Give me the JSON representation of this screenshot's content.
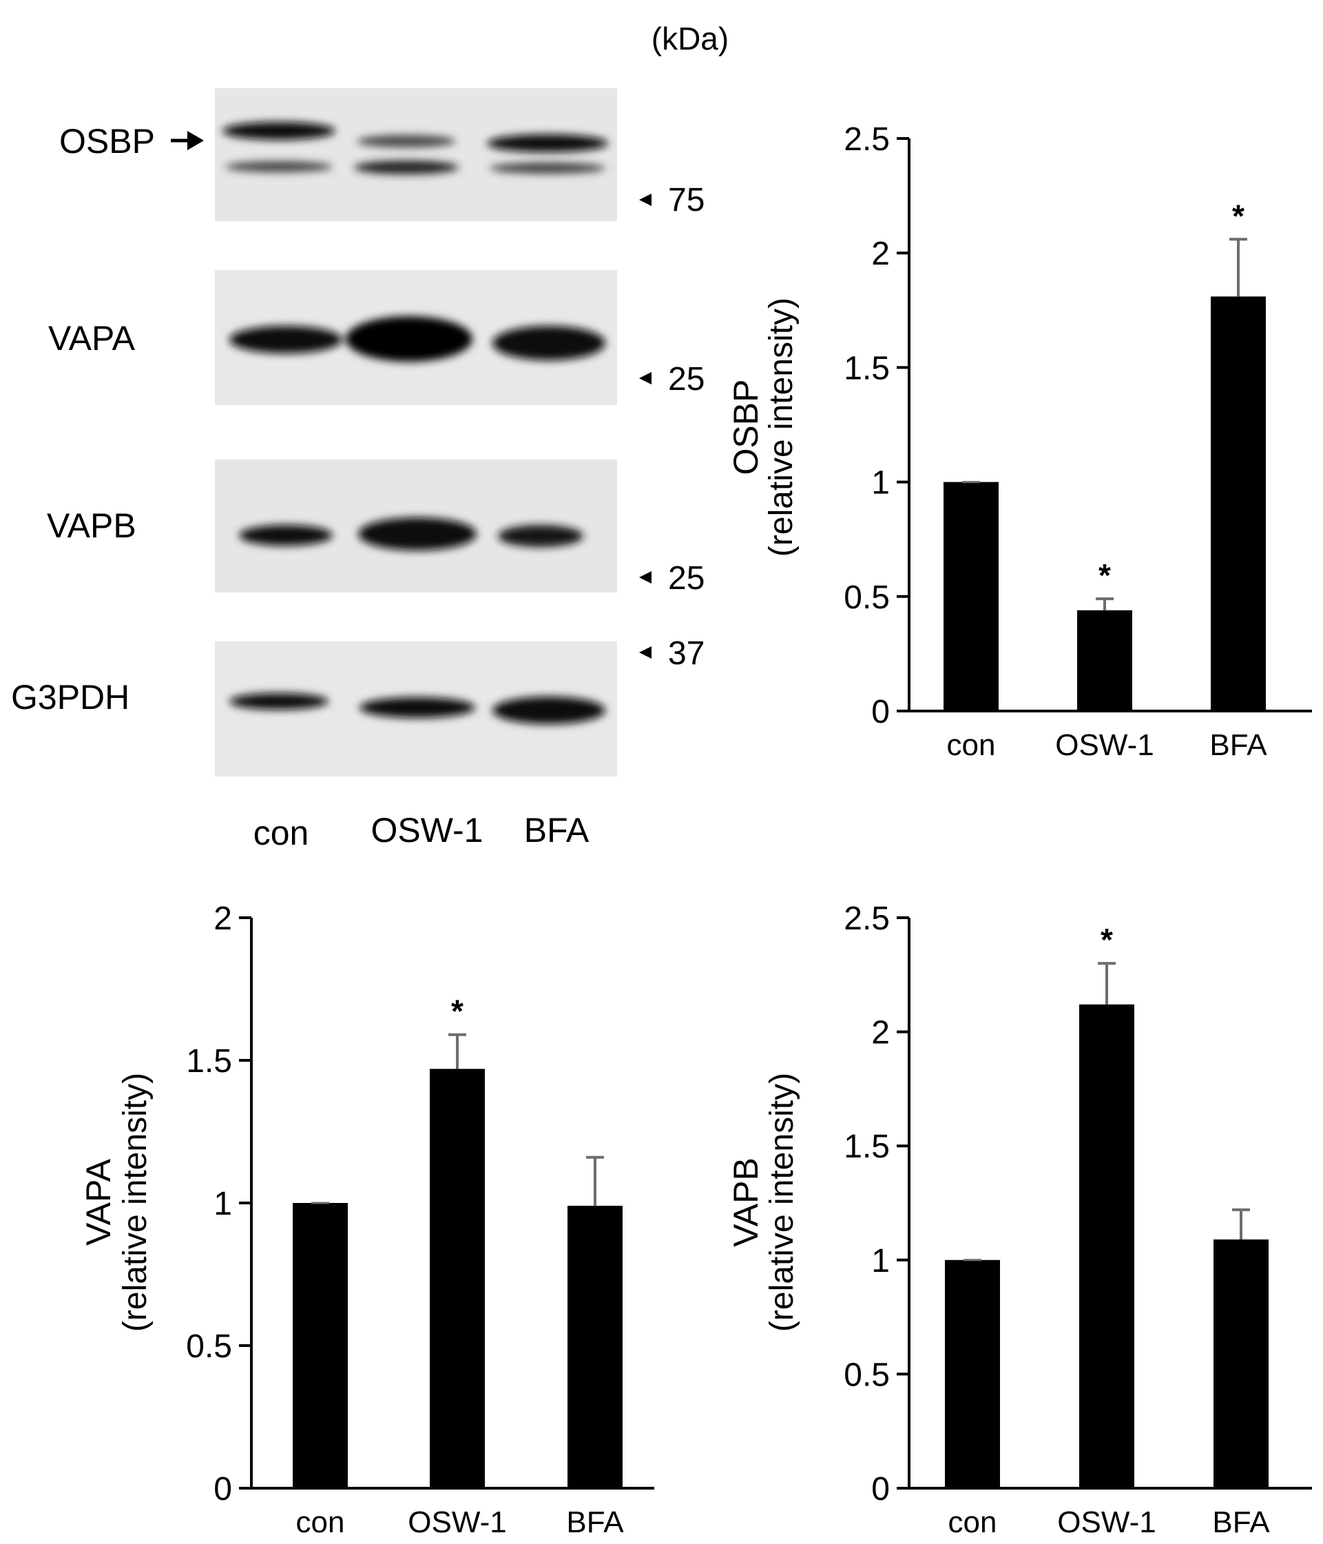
{
  "blot": {
    "unit_label": "(kDa)",
    "lane_labels": [
      "con",
      "OSW-1",
      "BFA"
    ],
    "panels": [
      {
        "protein": "OSBP",
        "marker": "75"
      },
      {
        "protein": "VAPA",
        "marker": "25"
      },
      {
        "protein": "VAPB",
        "marker": "25"
      },
      {
        "protein": "G3PDH",
        "marker": "37"
      }
    ]
  },
  "chart_data": [
    {
      "type": "bar",
      "categories": [
        "con",
        "OSW-1",
        "BFA"
      ],
      "values": [
        1.0,
        0.44,
        1.81
      ],
      "errors": [
        0.0,
        0.05,
        0.25
      ],
      "significant": [
        false,
        true,
        true
      ],
      "significance_marker": "*",
      "ylabel": "OSBP",
      "ylabel_sub": "(relative intensity)",
      "ylim": [
        0,
        2.5
      ],
      "yticks": [
        "0",
        "0.5",
        "1",
        "1.5",
        "2",
        "2.5"
      ],
      "bar_color": "#000000",
      "error_color": "#6d6d6d"
    },
    {
      "type": "bar",
      "categories": [
        "con",
        "OSW-1",
        "BFA"
      ],
      "values": [
        1.0,
        1.47,
        0.99
      ],
      "errors": [
        0.0,
        0.12,
        0.17
      ],
      "significant": [
        false,
        true,
        false
      ],
      "significance_marker": "*",
      "ylabel": "VAPA",
      "ylabel_sub": "(relative intensity)",
      "ylim": [
        0,
        2
      ],
      "yticks": [
        "0",
        "0.5",
        "1",
        "1.5",
        "2"
      ],
      "bar_color": "#000000",
      "error_color": "#6d6d6d"
    },
    {
      "type": "bar",
      "categories": [
        "con",
        "OSW-1",
        "BFA"
      ],
      "values": [
        1.0,
        2.12,
        1.09
      ],
      "errors": [
        0.0,
        0.18,
        0.13
      ],
      "significant": [
        false,
        true,
        false
      ],
      "significance_marker": "*",
      "ylabel": "VAPB",
      "ylabel_sub": "(relative intensity)",
      "ylim": [
        0,
        2.5
      ],
      "yticks": [
        "0",
        "0.5",
        "1",
        "1.5",
        "2",
        "2.5"
      ],
      "bar_color": "#000000",
      "error_color": "#6d6d6d"
    }
  ]
}
